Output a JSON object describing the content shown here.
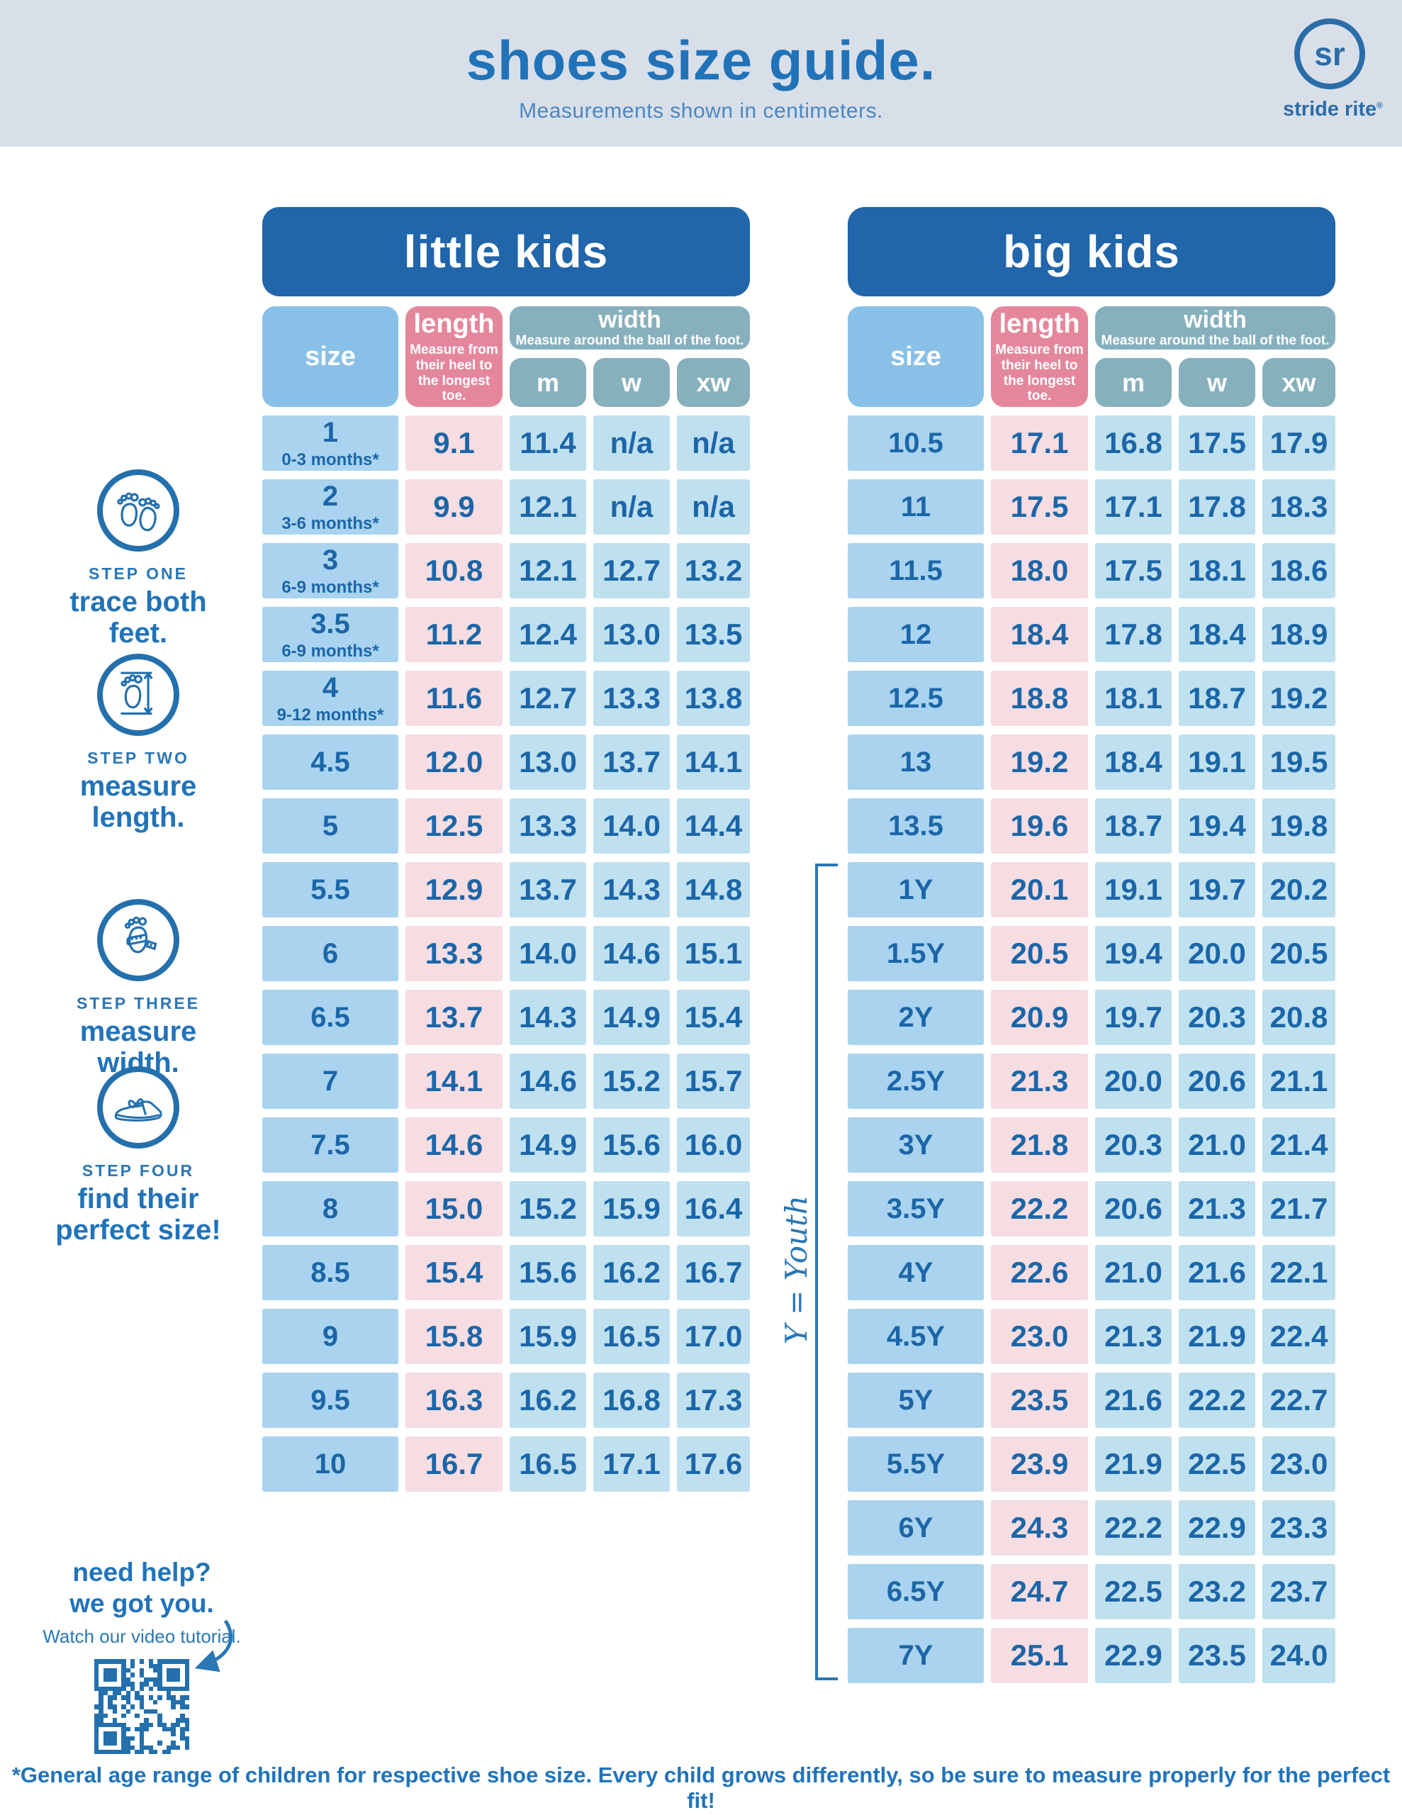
{
  "theme": {
    "banner": "#2165aa",
    "band_bg": "#d8dfe9",
    "accent": "#2173b9",
    "size_header": "#89c0e8",
    "size_cell": "#a9d3ee",
    "length_header": "#e5879c",
    "length_cell": "#f5dde2",
    "width_header": "#87b0bd",
    "width_cell": "#bfe0ee",
    "value_text": "#1c66a8",
    "bracket_blue": "#2a77b4"
  },
  "header": {
    "title": "shoes size guide.",
    "subtitle": "Measurements shown in centimeters.",
    "logo_monogram": "sr",
    "brand": "stride rite",
    "registered": "®"
  },
  "steps": [
    {
      "label": "STEP ONE",
      "title": "trace both feet.",
      "icon": "feet-icon"
    },
    {
      "label": "STEP TWO",
      "title": "measure length.",
      "icon": "measure-length-icon"
    },
    {
      "label": "STEP THREE",
      "title": "measure width.",
      "icon": "measure-width-icon"
    },
    {
      "label": "STEP FOUR",
      "title": "find their perfect size!",
      "icon": "shoe-icon"
    }
  ],
  "column_headers": {
    "size": "size",
    "length": "length",
    "length_note": "Measure from their heel to the longest toe.",
    "width": "width",
    "width_note": "Measure around the ball of the foot.",
    "sub": [
      "m",
      "w",
      "xw"
    ]
  },
  "tables": [
    {
      "title": "little kids",
      "rows": [
        {
          "size": "1",
          "age": "0-3 months*",
          "length": "9.1",
          "m": "11.4",
          "w": "n/a",
          "xw": "n/a"
        },
        {
          "size": "2",
          "age": "3-6 months*",
          "length": "9.9",
          "m": "12.1",
          "w": "n/a",
          "xw": "n/a"
        },
        {
          "size": "3",
          "age": "6-9 months*",
          "length": "10.8",
          "m": "12.1",
          "w": "12.7",
          "xw": "13.2"
        },
        {
          "size": "3.5",
          "age": "6-9 months*",
          "length": "11.2",
          "m": "12.4",
          "w": "13.0",
          "xw": "13.5"
        },
        {
          "size": "4",
          "age": "9-12 months*",
          "length": "11.6",
          "m": "12.7",
          "w": "13.3",
          "xw": "13.8"
        },
        {
          "size": "4.5",
          "length": "12.0",
          "m": "13.0",
          "w": "13.7",
          "xw": "14.1"
        },
        {
          "size": "5",
          "length": "12.5",
          "m": "13.3",
          "w": "14.0",
          "xw": "14.4"
        },
        {
          "size": "5.5",
          "length": "12.9",
          "m": "13.7",
          "w": "14.3",
          "xw": "14.8"
        },
        {
          "size": "6",
          "length": "13.3",
          "m": "14.0",
          "w": "14.6",
          "xw": "15.1"
        },
        {
          "size": "6.5",
          "length": "13.7",
          "m": "14.3",
          "w": "14.9",
          "xw": "15.4"
        },
        {
          "size": "7",
          "length": "14.1",
          "m": "14.6",
          "w": "15.2",
          "xw": "15.7"
        },
        {
          "size": "7.5",
          "length": "14.6",
          "m": "14.9",
          "w": "15.6",
          "xw": "16.0"
        },
        {
          "size": "8",
          "length": "15.0",
          "m": "15.2",
          "w": "15.9",
          "xw": "16.4"
        },
        {
          "size": "8.5",
          "length": "15.4",
          "m": "15.6",
          "w": "16.2",
          "xw": "16.7"
        },
        {
          "size": "9",
          "length": "15.8",
          "m": "15.9",
          "w": "16.5",
          "xw": "17.0"
        },
        {
          "size": "9.5",
          "length": "16.3",
          "m": "16.2",
          "w": "16.8",
          "xw": "17.3"
        },
        {
          "size": "10",
          "length": "16.7",
          "m": "16.5",
          "w": "17.1",
          "xw": "17.6"
        }
      ]
    },
    {
      "title": "big kids",
      "bracket_label": "Y = Youth",
      "rows": [
        {
          "size": "10.5",
          "length": "17.1",
          "m": "16.8",
          "w": "17.5",
          "xw": "17.9"
        },
        {
          "size": "11",
          "length": "17.5",
          "m": "17.1",
          "w": "17.8",
          "xw": "18.3"
        },
        {
          "size": "11.5",
          "length": "18.0",
          "m": "17.5",
          "w": "18.1",
          "xw": "18.6"
        },
        {
          "size": "12",
          "length": "18.4",
          "m": "17.8",
          "w": "18.4",
          "xw": "18.9"
        },
        {
          "size": "12.5",
          "length": "18.8",
          "m": "18.1",
          "w": "18.7",
          "xw": "19.2"
        },
        {
          "size": "13",
          "length": "19.2",
          "m": "18.4",
          "w": "19.1",
          "xw": "19.5"
        },
        {
          "size": "13.5",
          "length": "19.6",
          "m": "18.7",
          "w": "19.4",
          "xw": "19.8"
        },
        {
          "size": "1Y",
          "length": "20.1",
          "m": "19.1",
          "w": "19.7",
          "xw": "20.2"
        },
        {
          "size": "1.5Y",
          "length": "20.5",
          "m": "19.4",
          "w": "20.0",
          "xw": "20.5"
        },
        {
          "size": "2Y",
          "length": "20.9",
          "m": "19.7",
          "w": "20.3",
          "xw": "20.8"
        },
        {
          "size": "2.5Y",
          "length": "21.3",
          "m": "20.0",
          "w": "20.6",
          "xw": "21.1"
        },
        {
          "size": "3Y",
          "length": "21.8",
          "m": "20.3",
          "w": "21.0",
          "xw": "21.4"
        },
        {
          "size": "3.5Y",
          "length": "22.2",
          "m": "20.6",
          "w": "21.3",
          "xw": "21.7"
        },
        {
          "size": "4Y",
          "length": "22.6",
          "m": "21.0",
          "w": "21.6",
          "xw": "22.1"
        },
        {
          "size": "4.5Y",
          "length": "23.0",
          "m": "21.3",
          "w": "21.9",
          "xw": "22.4"
        },
        {
          "size": "5Y",
          "length": "23.5",
          "m": "21.6",
          "w": "22.2",
          "xw": "22.7"
        },
        {
          "size": "5.5Y",
          "length": "23.9",
          "m": "21.9",
          "w": "22.5",
          "xw": "23.0"
        },
        {
          "size": "6Y",
          "length": "24.3",
          "m": "22.2",
          "w": "22.9",
          "xw": "23.3"
        },
        {
          "size": "6.5Y",
          "length": "24.7",
          "m": "22.5",
          "w": "23.2",
          "xw": "23.7"
        },
        {
          "size": "7Y",
          "length": "25.1",
          "m": "22.9",
          "w": "23.5",
          "xw": "24.0"
        }
      ]
    }
  ],
  "help": {
    "line1": "need help?",
    "line2": "we got you.",
    "line3": "Watch our video tutorial."
  },
  "footer_note": "*General age range of children for respective shoe size. Every child grows differently, so be sure to measure properly for the perfect fit!"
}
